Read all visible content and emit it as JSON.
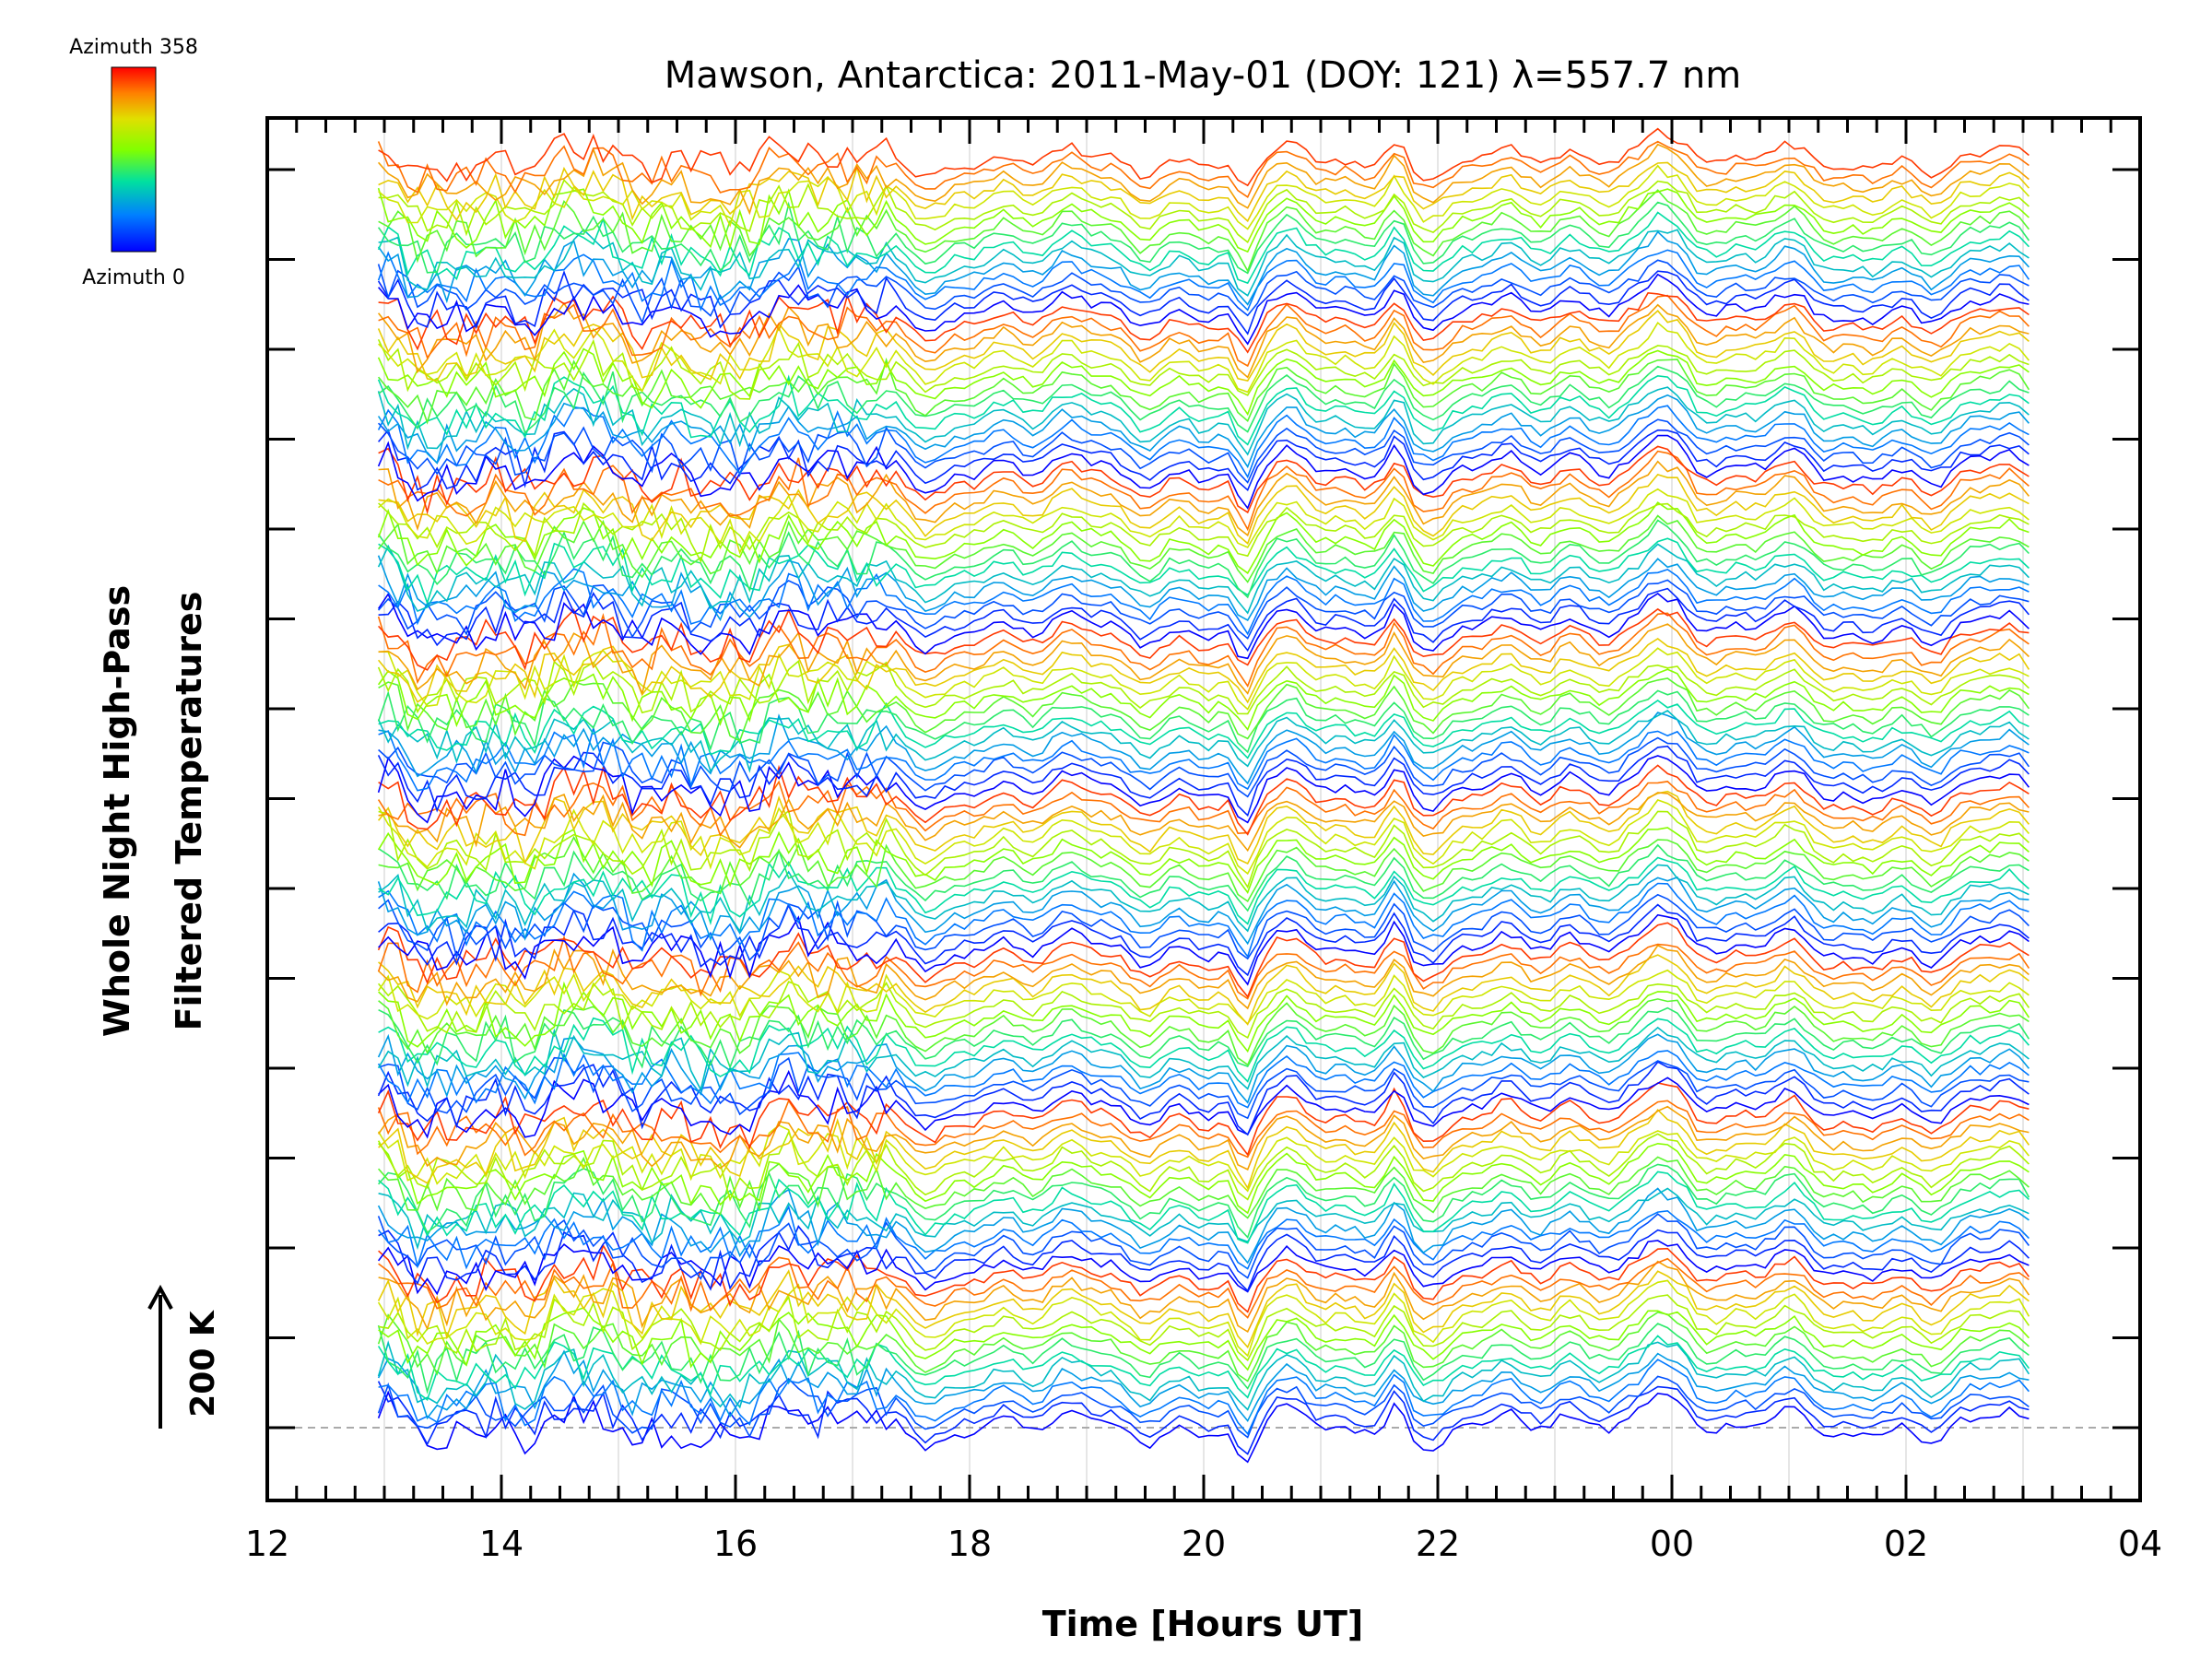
{
  "chart_data": {
    "type": "line",
    "title": "Mawson, Antarctica: 2011-May-01 (DOY: 121) λ=557.7 nm",
    "xlabel": "Time [Hours UT]",
    "ylabel_line1": "Whole Night High-Pass",
    "ylabel_line2": "Filtered Temperatures",
    "x_tick_labels": [
      "12",
      "14",
      "16",
      "18",
      "20",
      "22",
      "00",
      "02",
      "04"
    ],
    "x_range_hours": [
      12,
      28
    ],
    "data_start_hour": 12.95,
    "data_end_hour": 27.05,
    "scale_bar": {
      "label": "200 K",
      "value_K": 200
    },
    "colorbar": {
      "top_label": "Azimuth 358",
      "bottom_label": "Azimuth 0",
      "colors": [
        "#ff0000",
        "#ff8000",
        "#ffff00",
        "#80ff00",
        "#00ff80",
        "#00c0ff",
        "#0040ff",
        "#0000ff"
      ]
    },
    "series_count": 128,
    "azimuth_range": [
      0,
      358
    ],
    "grid": true,
    "notes_visible": "stacked waterfall of filtered temperature traces, one per azimuth bin, colored by azimuth"
  }
}
